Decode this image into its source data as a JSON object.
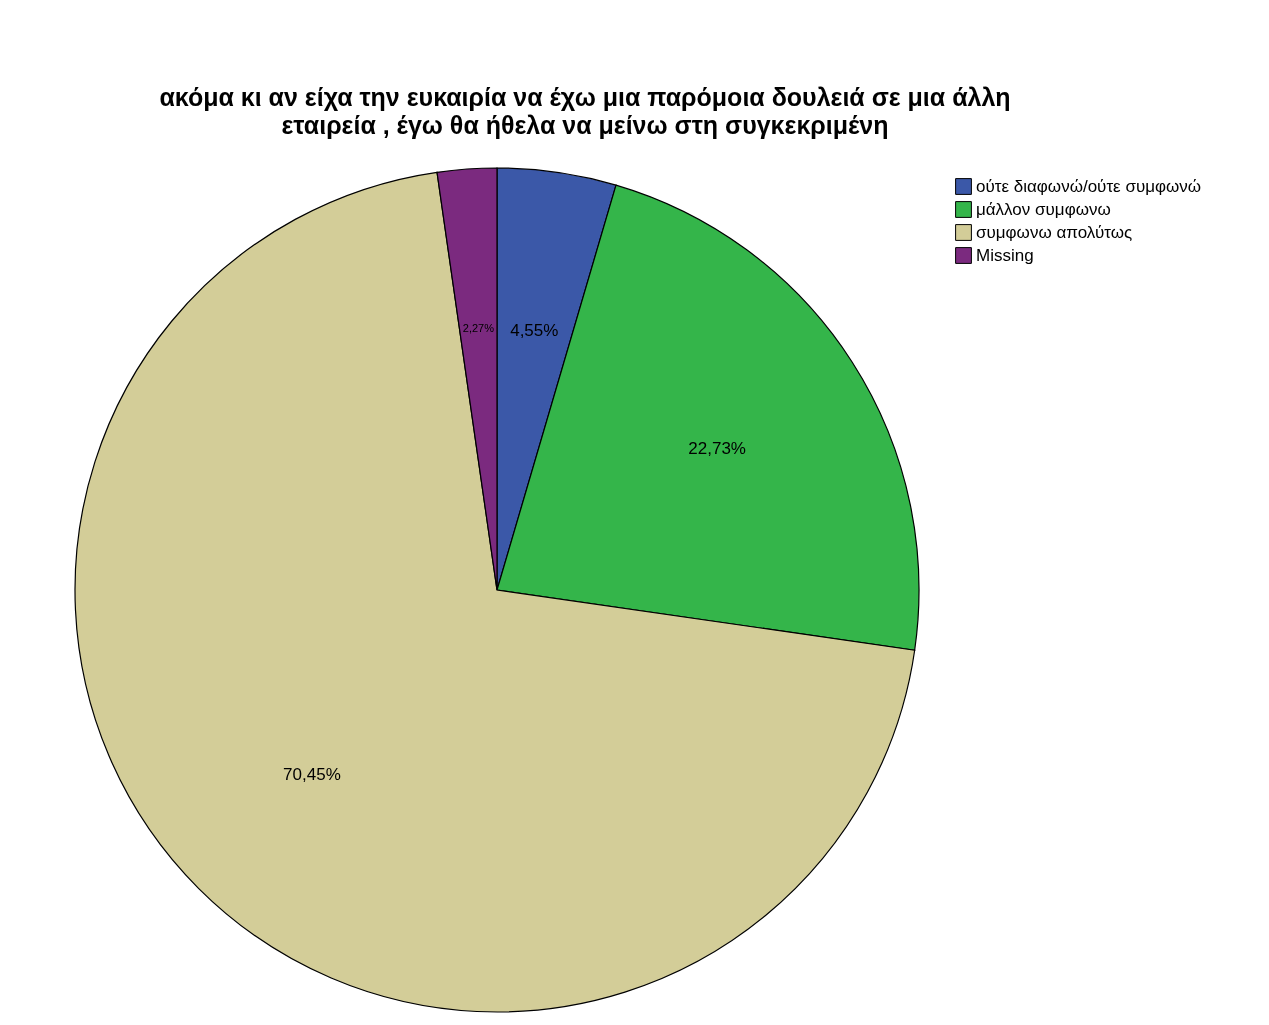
{
  "chart_data": {
    "type": "pie",
    "title": "ακόμα κι αν είχα την ευκαιρία να έχω μια παρόμοια δουλειά σε μια άλλη εταιρεία , έγω θα ήθελα να μείνω στη συγκεκριμένη",
    "categories": [
      "ούτε διαφωνώ/ούτε συμφωνώ",
      "μάλλον συμφωνω",
      "συμφωνω απολύτως",
      "Missing"
    ],
    "values": [
      4.55,
      22.73,
      70.45,
      2.27
    ],
    "colors": [
      "#3b58a8",
      "#34b54a",
      "#d3cd98",
      "#7b2a7f"
    ],
    "value_labels": [
      "4,55%",
      "22,73%",
      "70,45%",
      "2,27%"
    ],
    "legend": "top right"
  }
}
